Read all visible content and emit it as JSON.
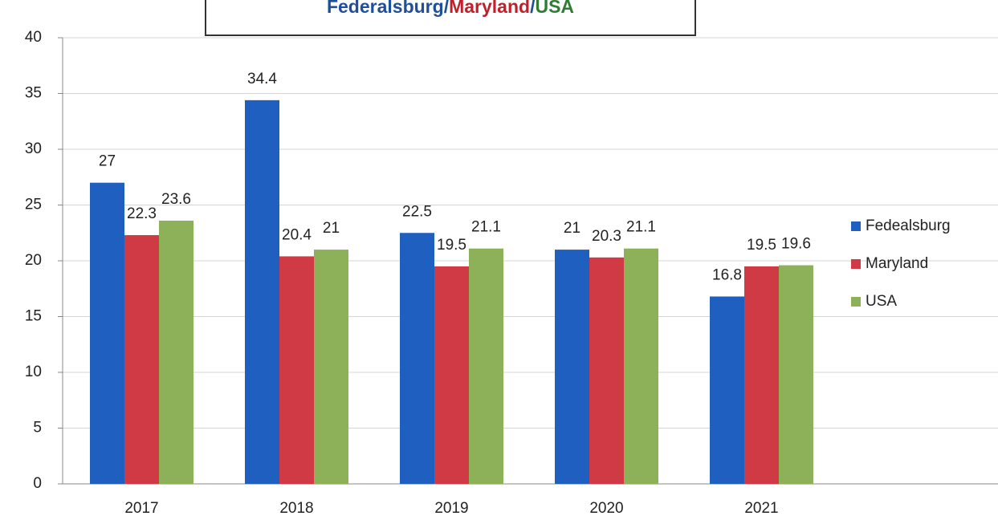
{
  "chart_data": {
    "type": "bar",
    "title_parts": [
      "Federalsburg",
      "/",
      "Maryland",
      "/",
      "USA"
    ],
    "title_colors": [
      "#1f4e9c",
      "#1f4e9c",
      "#c0202a",
      "#1f4e9c",
      "#2e7d32"
    ],
    "categories": [
      "2017",
      "2018",
      "2019",
      "2020",
      "2021"
    ],
    "series": [
      {
        "name": "Fedealsburg",
        "color": "#1f5fbf",
        "values": [
          27,
          34.4,
          22.5,
          21,
          16.8
        ]
      },
      {
        "name": "Maryland",
        "color": "#cf3a45",
        "values": [
          22.3,
          20.4,
          19.5,
          20.3,
          19.5
        ]
      },
      {
        "name": "USA",
        "color": "#8cb158",
        "values": [
          23.6,
          21,
          21.1,
          21.1,
          19.6
        ]
      }
    ],
    "ylim": [
      0,
      40
    ],
    "yticks": [
      0,
      5,
      10,
      15,
      20,
      25,
      30,
      35,
      40
    ],
    "grid": true,
    "legend": "right"
  }
}
